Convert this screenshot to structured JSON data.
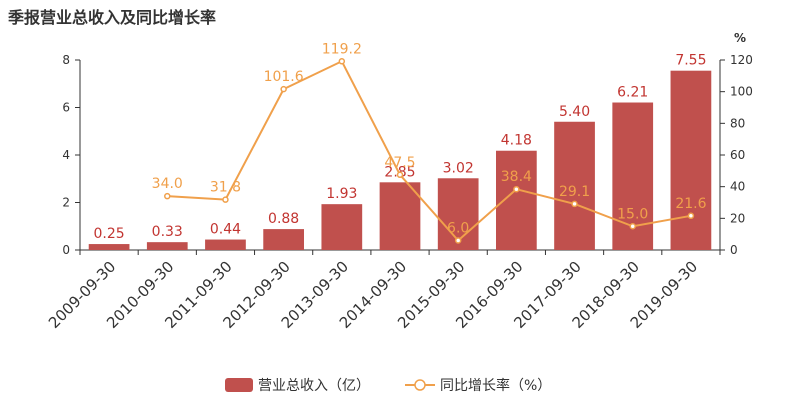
{
  "title": "季报营业总收入及同比增长率",
  "chart_data": {
    "type": "bar",
    "categories": [
      "2009-09-30",
      "2010-09-30",
      "2011-09-30",
      "2012-09-30",
      "2013-09-30",
      "2014-09-30",
      "2015-09-30",
      "2016-09-30",
      "2017-09-30",
      "2018-09-30",
      "2019-09-30"
    ],
    "series": [
      {
        "name": "营业总收入（亿）",
        "type": "bar",
        "axis": "left",
        "color": "#c0504d",
        "values": [
          0.25,
          0.33,
          0.44,
          0.88,
          1.93,
          2.85,
          3.02,
          4.18,
          5.4,
          6.21,
          7.55
        ],
        "labels": [
          "0.25",
          "0.33",
          "0.44",
          "0.88",
          "1.93",
          "2.85",
          "3.02",
          "4.18",
          "5.40",
          "6.21",
          "7.55"
        ]
      },
      {
        "name": "同比增长率（%）",
        "type": "line",
        "axis": "right",
        "color": "#f0a04b",
        "values": [
          null,
          34.0,
          31.8,
          101.6,
          119.2,
          47.5,
          6.0,
          38.4,
          29.1,
          15.0,
          21.6
        ],
        "labels": [
          "",
          "34.0",
          "31.8",
          "101.6",
          "119.2",
          "47.5",
          "6.0",
          "38.4",
          "29.1",
          "15.0",
          "21.6"
        ]
      }
    ],
    "y_left": {
      "min": 0,
      "max": 8,
      "ticks": [
        "0",
        "2",
        "4",
        "6",
        "8"
      ]
    },
    "y_right": {
      "min": 0,
      "max": 120,
      "ticks": [
        "0",
        "20",
        "40",
        "60",
        "80",
        "100",
        "120"
      ],
      "unit": "%"
    },
    "legend": {
      "position": "bottom-center"
    }
  }
}
